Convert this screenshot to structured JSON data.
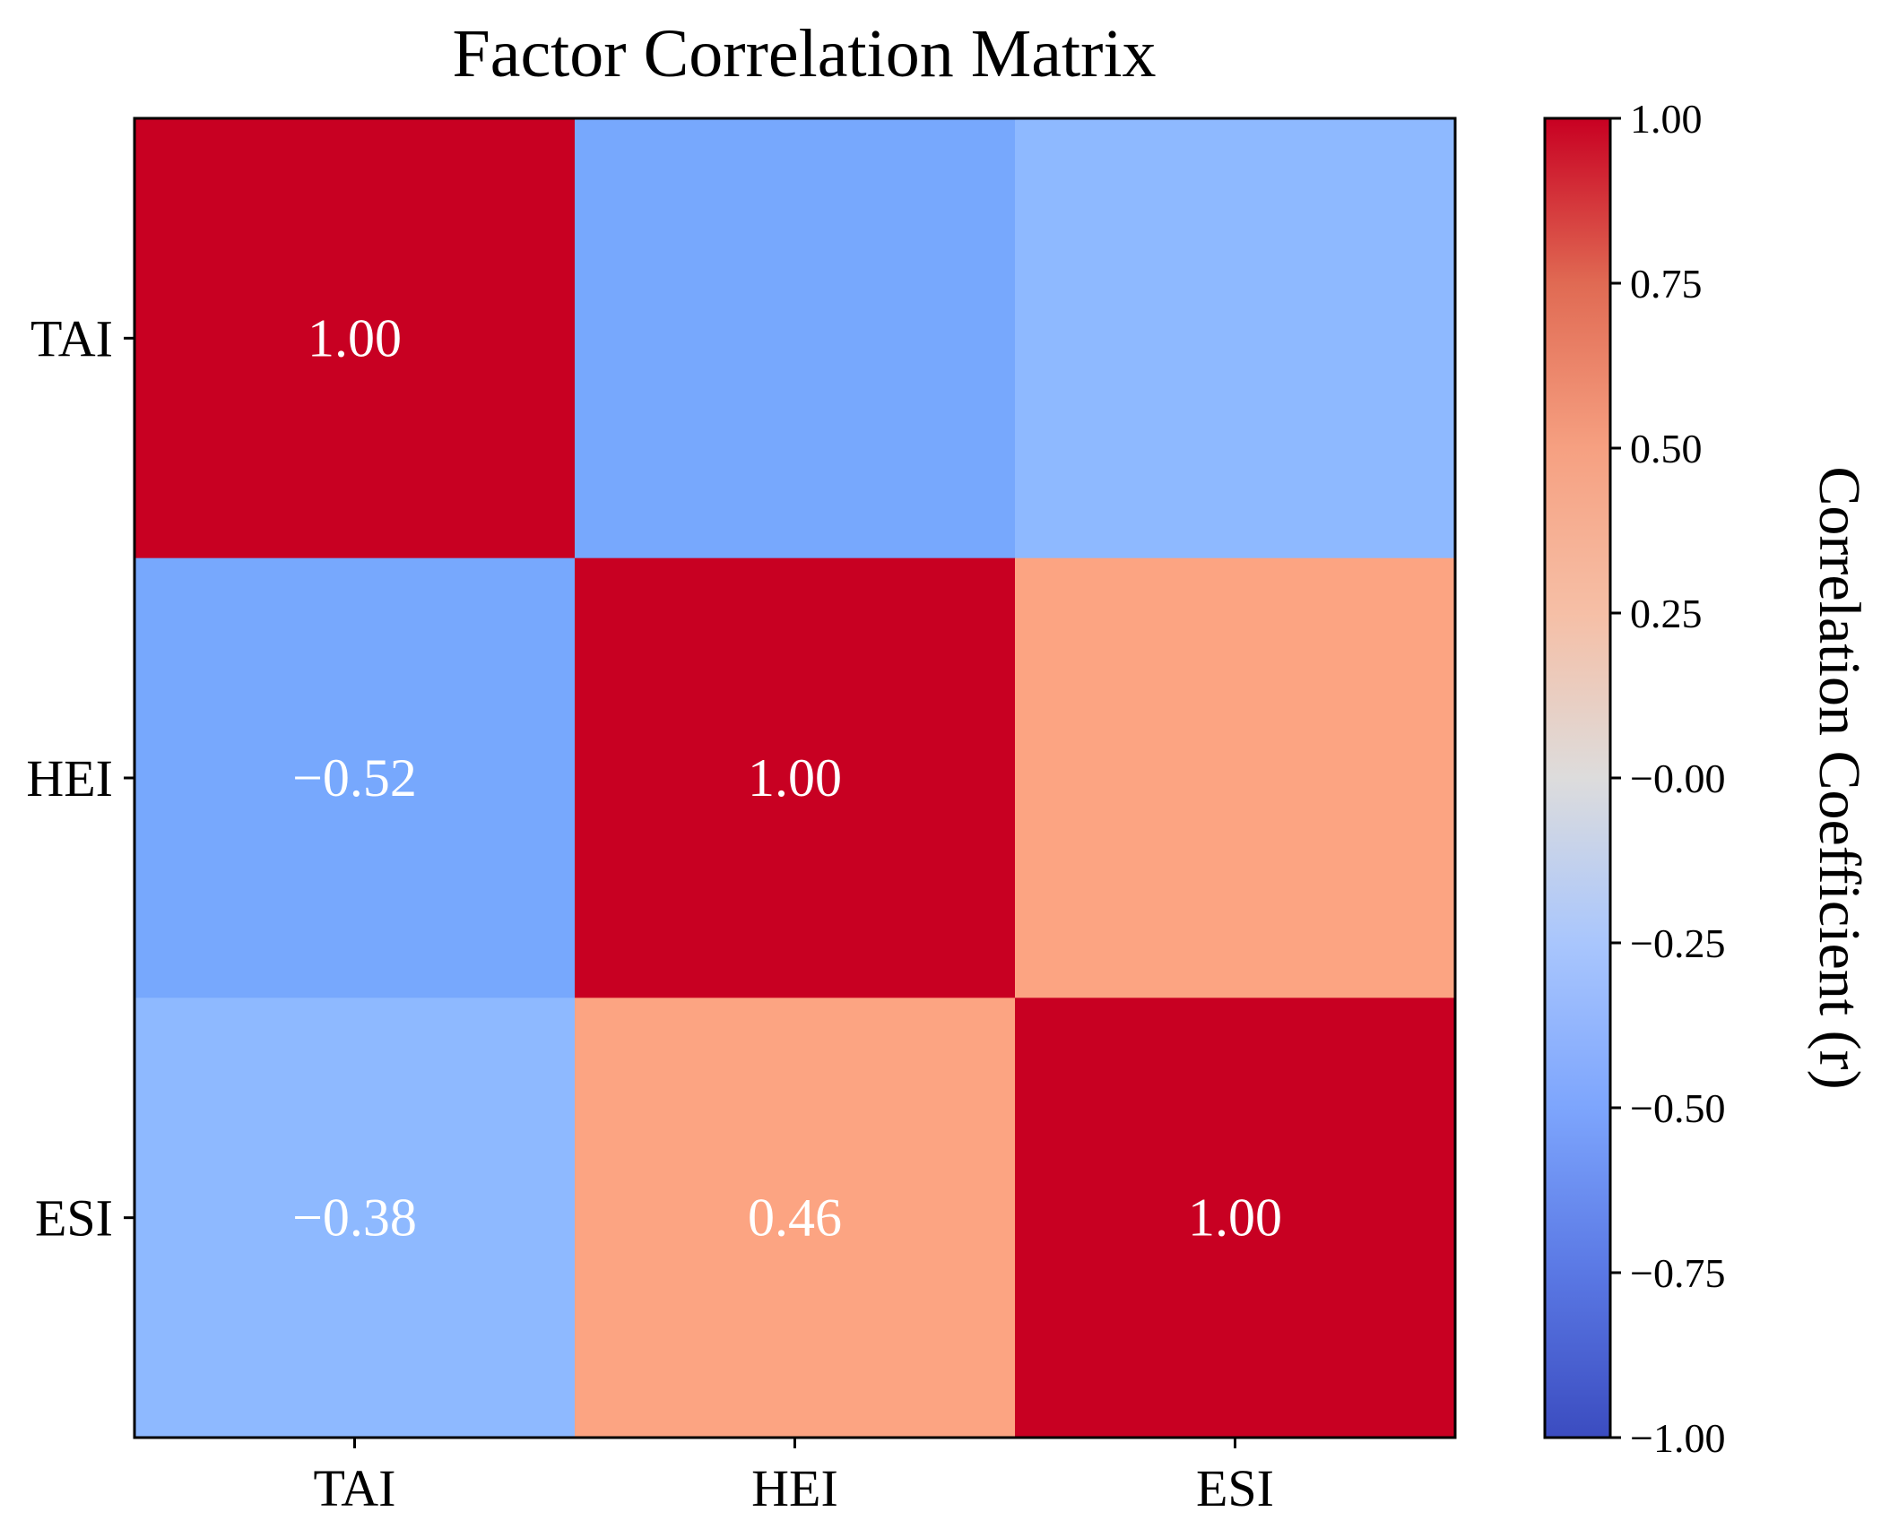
{
  "chart_data": {
    "type": "heatmap",
    "title": "Factor Correlation Matrix",
    "x_categories": [
      "TAI",
      "HEI",
      "ESI"
    ],
    "y_categories": [
      "TAI",
      "HEI",
      "ESI"
    ],
    "matrix": [
      [
        1.0,
        null,
        null
      ],
      [
        -0.52,
        1.0,
        null
      ],
      [
        -0.38,
        0.46,
        1.0
      ]
    ],
    "cell_values": [
      [
        1.0,
        -0.52,
        -0.38
      ],
      [
        -0.52,
        1.0,
        0.46
      ],
      [
        -0.38,
        0.46,
        1.0
      ]
    ],
    "cell_labels": [
      [
        "1.00",
        "",
        ""
      ],
      [
        "−0.52",
        "1.00",
        ""
      ],
      [
        "−0.38",
        "0.46",
        "1.00"
      ]
    ],
    "colorbar": {
      "label": "Correlation Coefficient (r)",
      "range": [
        -1.0,
        1.0
      ],
      "colormap": "coolwarm",
      "ticks": [
        1.0,
        0.75,
        0.5,
        0.25,
        0.0,
        -0.25,
        -0.5,
        -0.75,
        -1.0
      ],
      "tick_labels": [
        "1.00",
        "0.75",
        "0.50",
        "0.25",
        "−0.00",
        "−0.25",
        "−0.50",
        "−0.75",
        "−1.00"
      ]
    }
  }
}
